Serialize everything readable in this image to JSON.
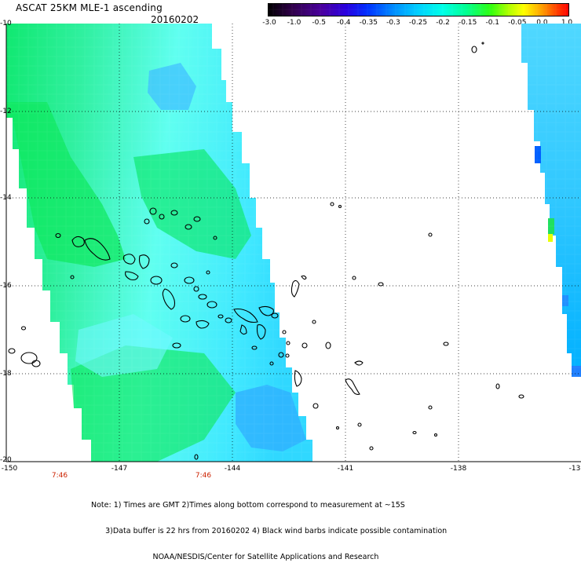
{
  "title": "ASCAT 25KM MLE-1 ascending",
  "date": "20160202",
  "colorbar": {
    "labels": [
      "-3.0",
      "-1.0",
      "-0.5",
      "-0.4",
      "-0.35",
      "-0.3",
      "-0.25",
      "-0.2",
      "-0.15",
      "-0.1",
      "-0.05",
      "0.0",
      "1.0"
    ],
    "colors": [
      "#000000",
      "#2a0040",
      "#4b0090",
      "#3a00d8",
      "#0020ff",
      "#0088ff",
      "#00c8ff",
      "#00ffe0",
      "#00ff80",
      "#40ff00",
      "#c0ff00",
      "#ffff00",
      "#ffa000",
      "#ff4000",
      "#ff0000"
    ]
  },
  "latitudes": [
    "-10",
    "-12",
    "-14",
    "-16",
    "-18",
    "-20"
  ],
  "longitudes": [
    "-150",
    "-147",
    "-144",
    "-141",
    "-138",
    "-13"
  ],
  "times": [
    "7:46",
    "7:46"
  ],
  "notes": [
    "Note: 1) Times are GMT 2)Times along bottom correspond to measurement at ~15S",
    "      3)Data buffer is 22 hrs from 20160202 4) Black wind barbs indicate possible contamination",
    "                          NOAA/NESDIS/Center for Satellite Applications and Research"
  ]
}
